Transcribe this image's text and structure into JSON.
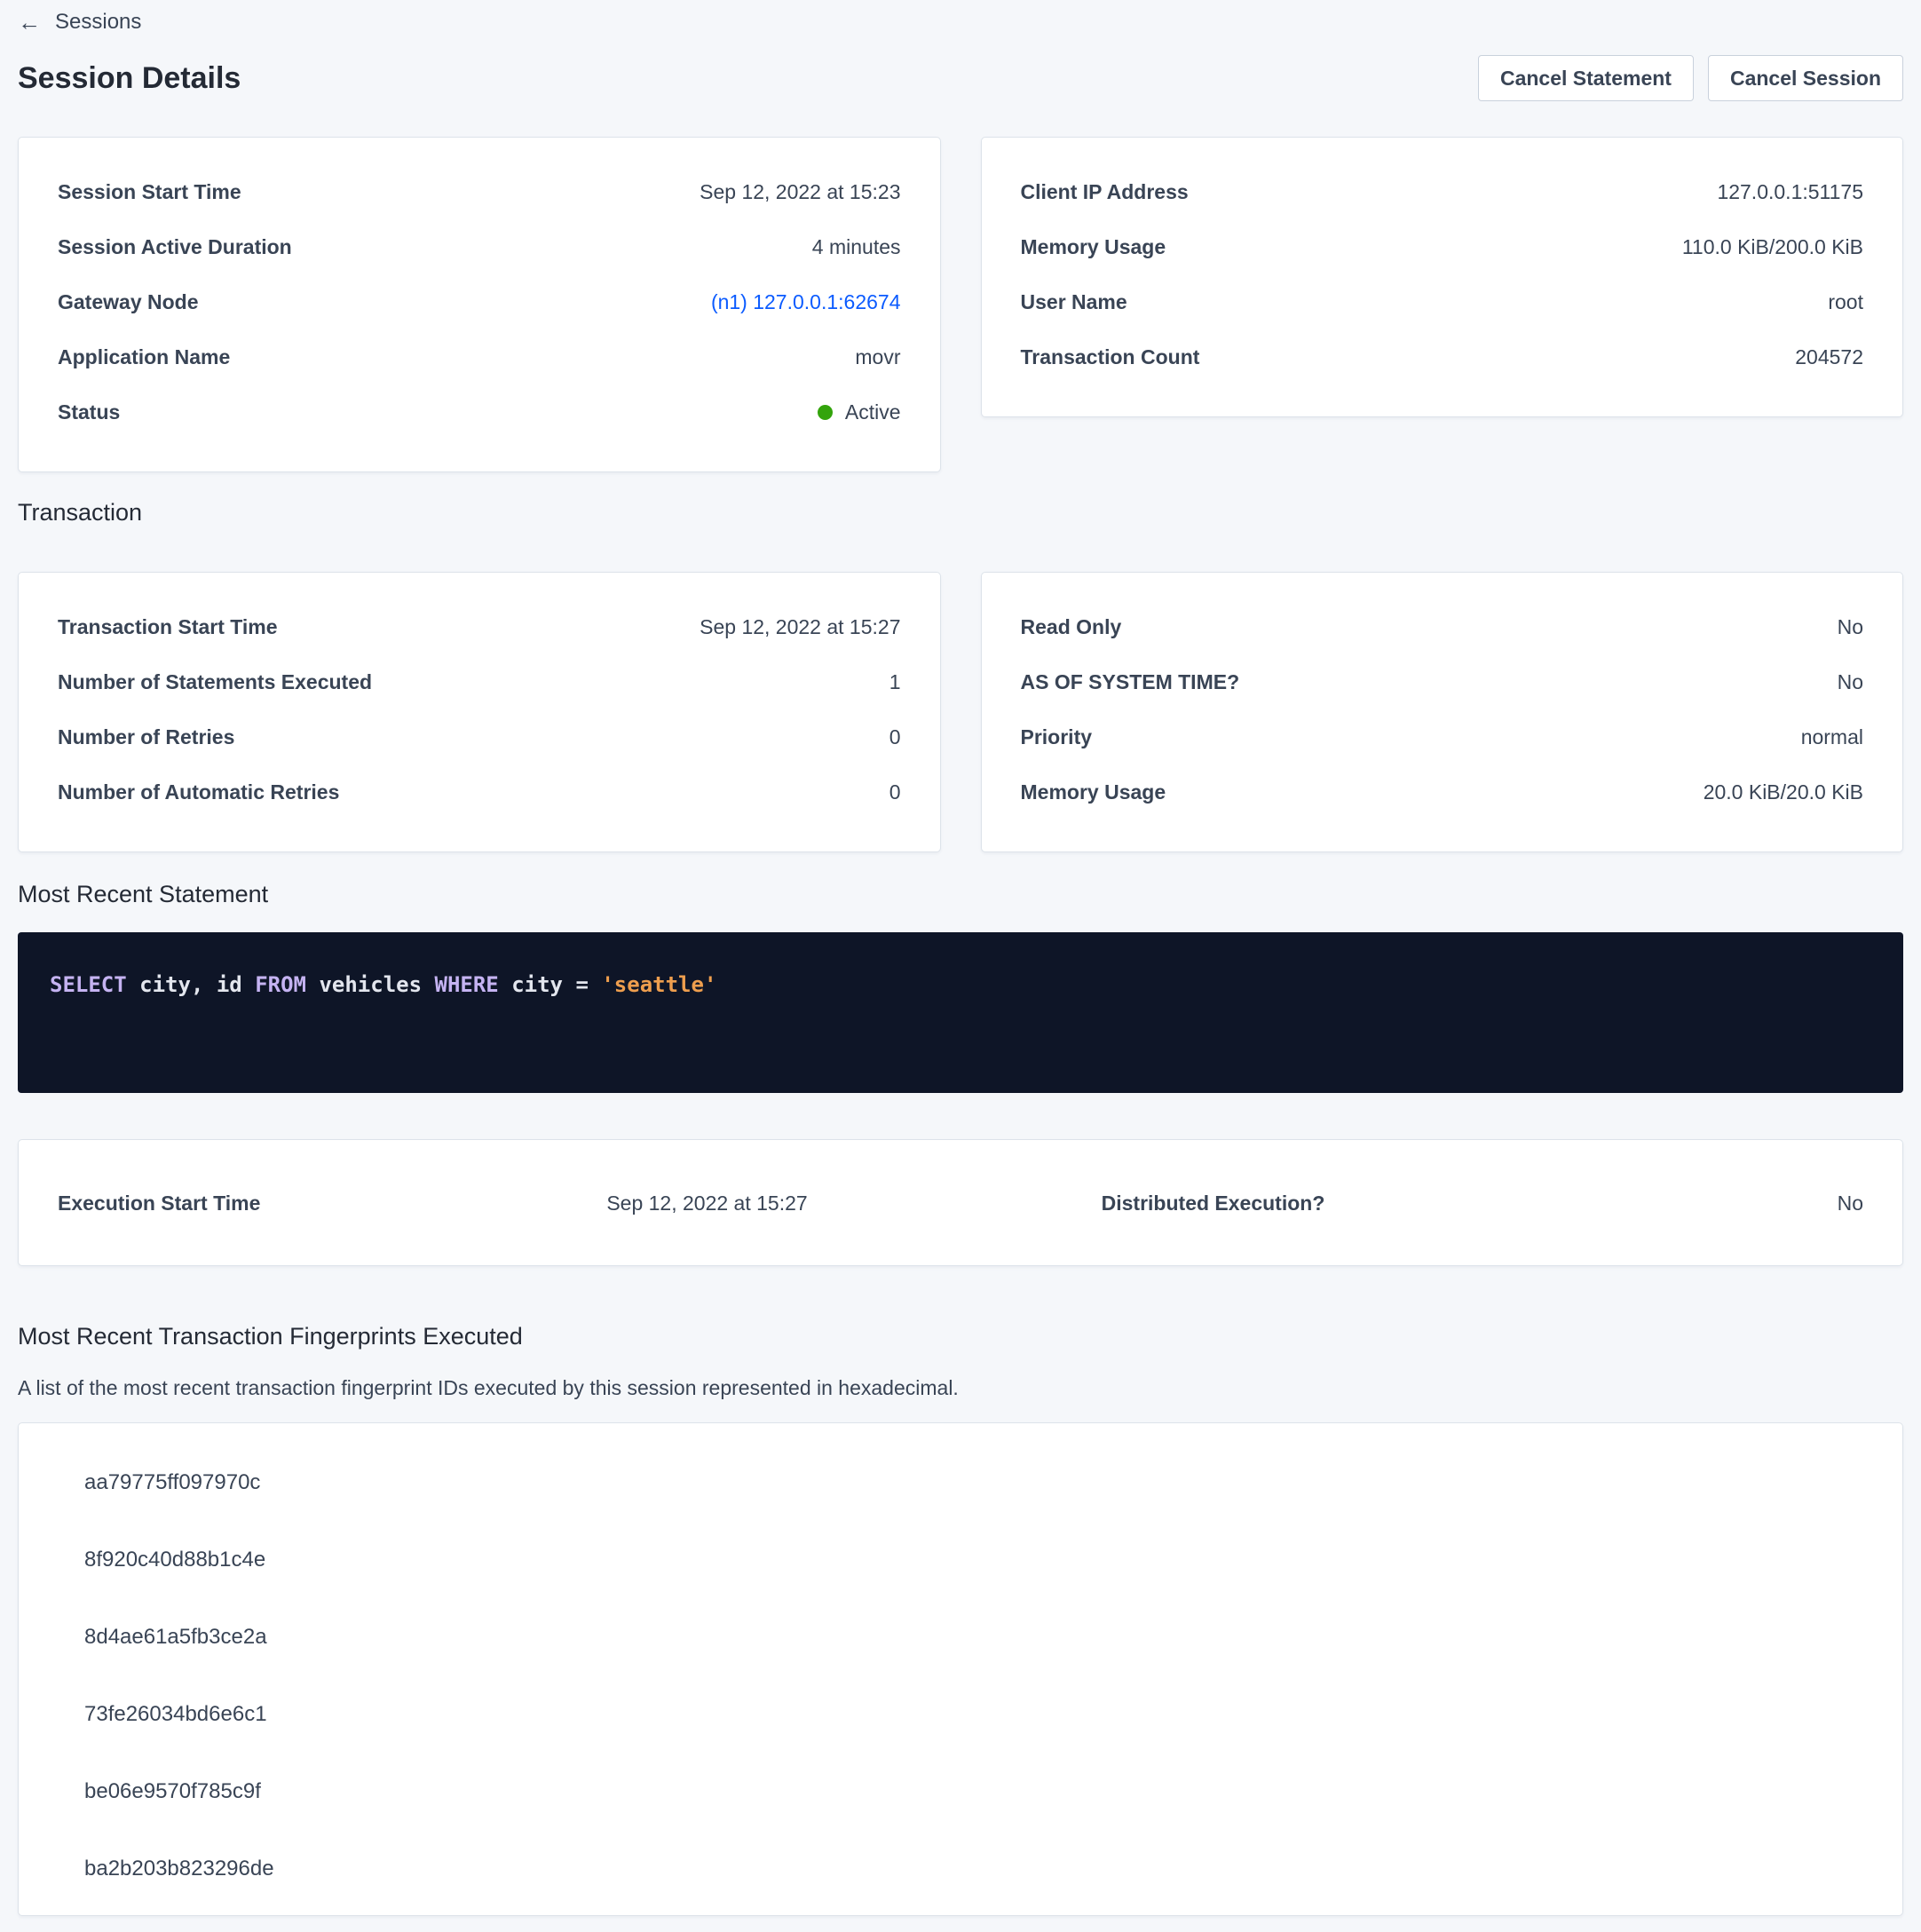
{
  "header": {
    "back_icon": "←",
    "back_label": "Sessions",
    "title": "Session Details",
    "cancel_statement_label": "Cancel Statement",
    "cancel_session_label": "Cancel Session"
  },
  "session": {
    "left": {
      "rows": [
        {
          "label": "Session Start Time",
          "value": "Sep 12, 2022 at 15:23"
        },
        {
          "label": "Session Active Duration",
          "value": "4 minutes"
        },
        {
          "label": "Gateway Node",
          "value": "(n1) 127.0.0.1:62674"
        },
        {
          "label": "Application Name",
          "value": "movr"
        },
        {
          "label": "Status",
          "value": "Active"
        }
      ]
    },
    "right": {
      "rows": [
        {
          "label": "Client IP Address",
          "value": "127.0.0.1:51175"
        },
        {
          "label": "Memory Usage",
          "value": "110.0 KiB/200.0 KiB"
        },
        {
          "label": "User Name",
          "value": "root"
        },
        {
          "label": "Transaction Count",
          "value": "204572"
        }
      ]
    }
  },
  "transaction": {
    "heading": "Transaction",
    "left": {
      "rows": [
        {
          "label": "Transaction Start Time",
          "value": "Sep 12, 2022 at 15:27"
        },
        {
          "label": "Number of Statements Executed",
          "value": "1"
        },
        {
          "label": "Number of Retries",
          "value": "0"
        },
        {
          "label": "Number of Automatic Retries",
          "value": "0"
        }
      ]
    },
    "right": {
      "rows": [
        {
          "label": "Read Only",
          "value": "No"
        },
        {
          "label": "AS OF SYSTEM TIME?",
          "value": "No"
        },
        {
          "label": "Priority",
          "value": "normal"
        },
        {
          "label": "Memory Usage",
          "value": "20.0 KiB/20.0 KiB"
        }
      ]
    }
  },
  "statement": {
    "heading": "Most Recent Statement",
    "sql": {
      "kw1": "SELECT",
      "t1": " city, id ",
      "kw2": "FROM",
      "t2": " vehicles ",
      "kw3": "WHERE",
      "t3": " city = ",
      "str": "'seattle'"
    }
  },
  "execution": {
    "start_label": "Execution Start Time",
    "start_value": "Sep 12, 2022 at 15:27",
    "distributed_label": "Distributed Execution?",
    "distributed_value": "No"
  },
  "fingerprints": {
    "heading": "Most Recent Transaction Fingerprints Executed",
    "description": "A list of the most recent transaction fingerprint IDs executed by this session represented in hexadecimal.",
    "items": [
      "aa79775ff097970c",
      "8f920c40d88b1c4e",
      "8d4ae61a5fb3ce2a",
      "73fe26034bd6e6c1",
      "be06e9570f785c9f",
      "ba2b203b823296de"
    ]
  },
  "colors": {
    "page_background": "#f5f7fa",
    "link_blue": "#0b5bff",
    "status_green": "#33a40c",
    "sql_background": "#0e1527",
    "sql_keyword": "#c5b3f2",
    "sql_text": "#e3e6ee",
    "sql_string": "#ee9e4e"
  }
}
